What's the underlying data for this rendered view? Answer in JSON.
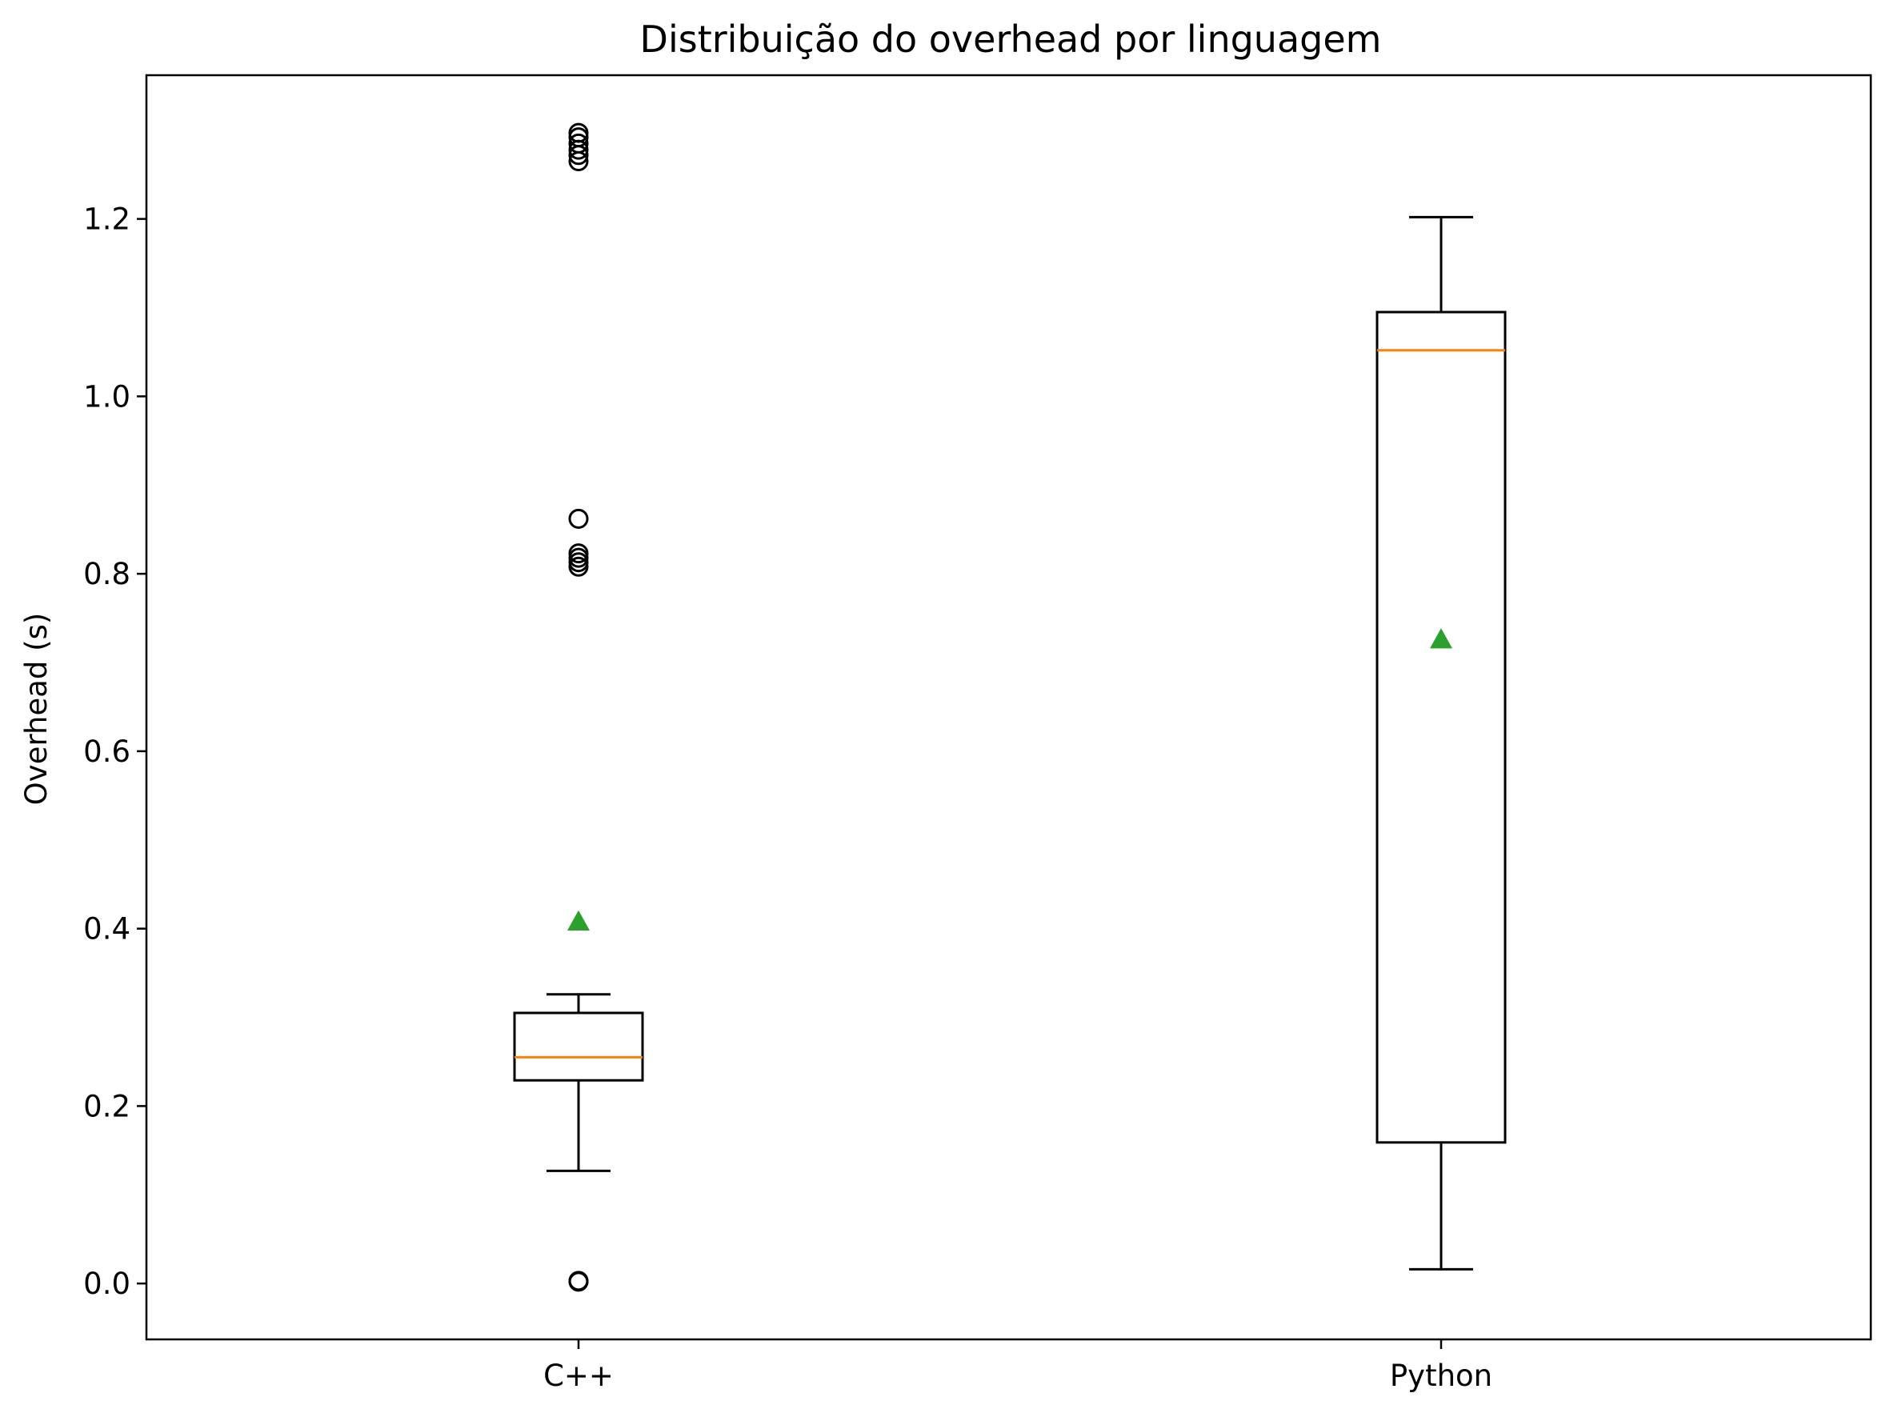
{
  "chart_data": {
    "type": "box",
    "title": "Distribuição do overhead por linguagem",
    "xlabel": "",
    "ylabel": "Overhead (s)",
    "ylim": [
      -0.063,
      1.362
    ],
    "yticks": [
      "0.0",
      "0.2",
      "0.4",
      "0.6",
      "0.8",
      "1.0",
      "1.2"
    ],
    "ytick_values": [
      0.0,
      0.2,
      0.4,
      0.6,
      0.8,
      1.0,
      1.2
    ],
    "categories": [
      "C++",
      "Python"
    ],
    "boxes": [
      {
        "category": "C++",
        "whisker_low": 0.127,
        "q1": 0.229,
        "median": 0.255,
        "q3": 0.305,
        "whisker_high": 0.326,
        "mean": 0.408,
        "outliers": [
          0.002,
          0.003,
          0.808,
          0.813,
          0.818,
          0.823,
          0.862,
          1.265,
          1.272,
          1.278,
          1.285,
          1.292,
          1.297
        ]
      },
      {
        "category": "Python",
        "whisker_low": 0.016,
        "q1": 0.159,
        "median": 1.052,
        "q3": 1.095,
        "whisker_high": 1.202,
        "mean": 0.726,
        "outliers": []
      }
    ],
    "grid": false,
    "colors": {
      "box": "#000000",
      "median": "#ff7f0e",
      "mean": "#2ca02c",
      "outlier": "#000000"
    }
  }
}
